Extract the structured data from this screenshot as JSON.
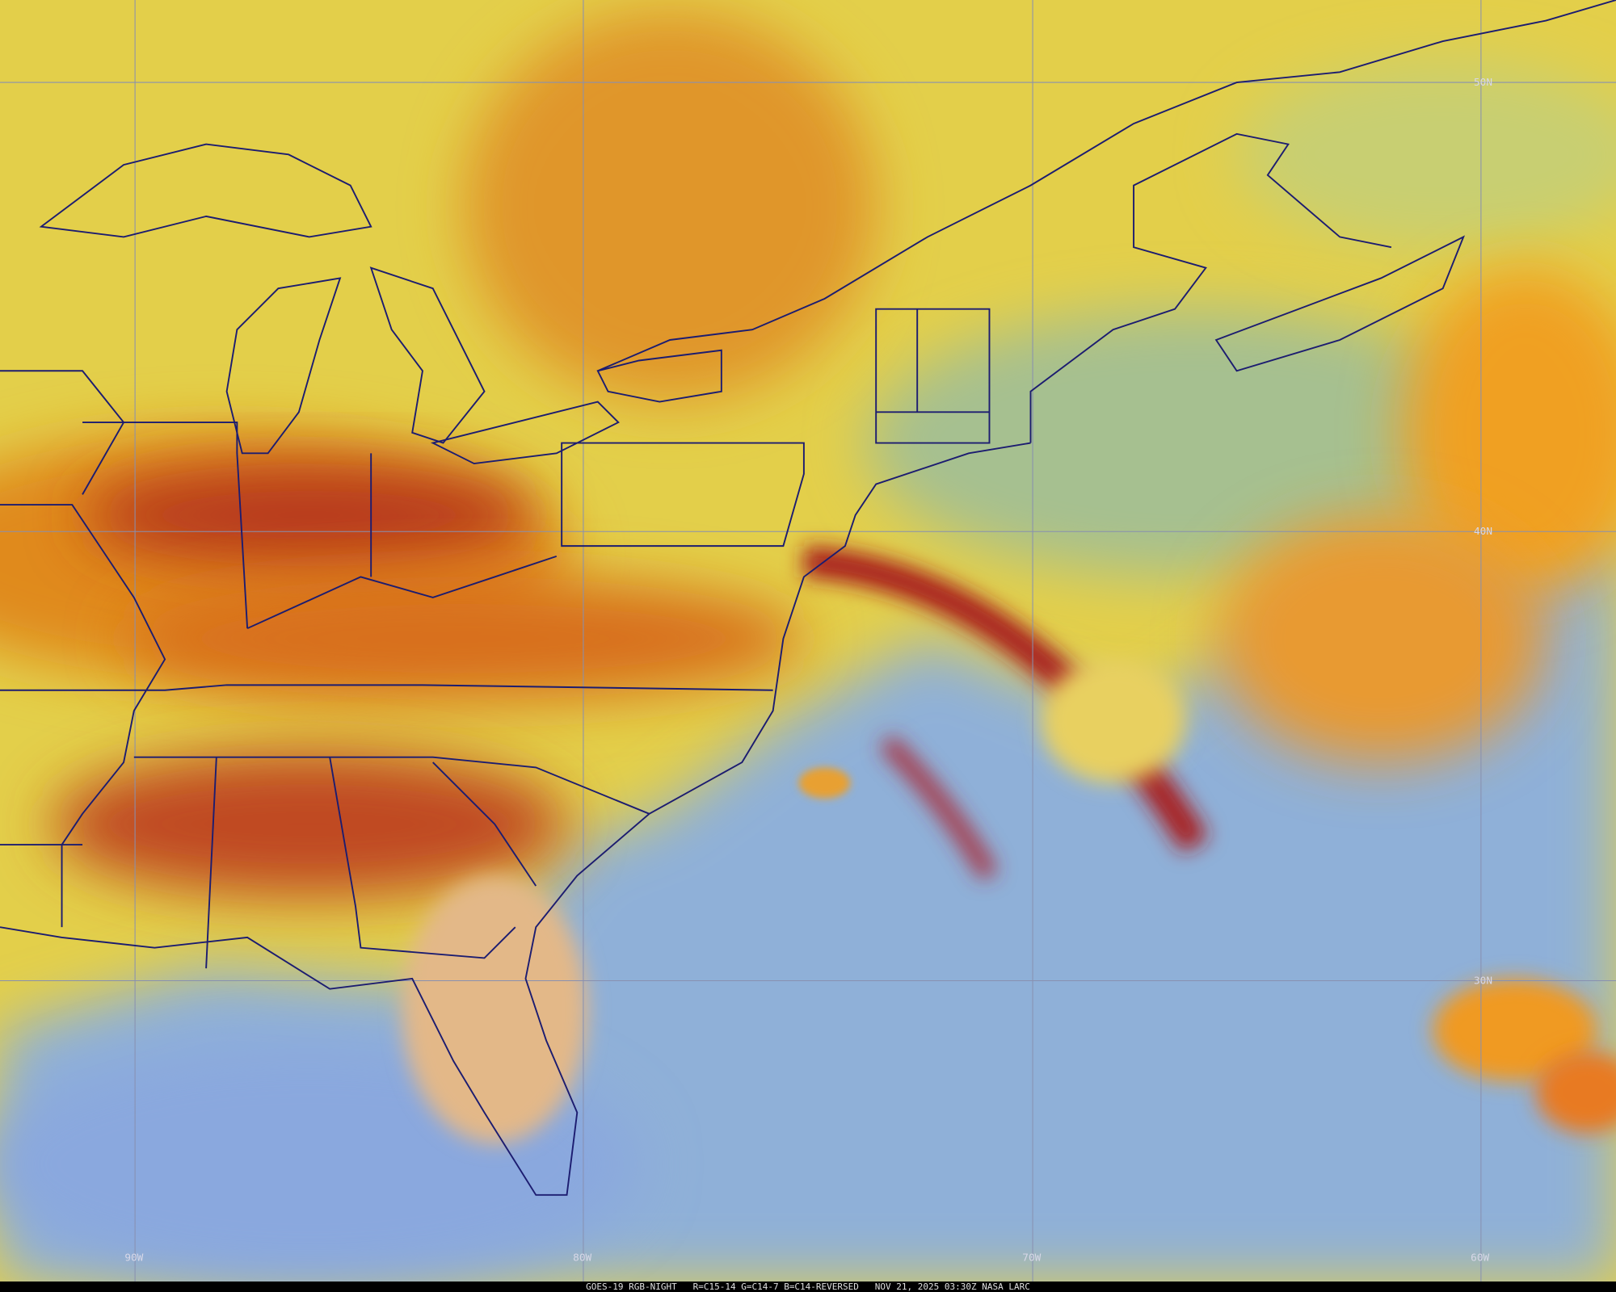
{
  "map": {
    "lat_labels": [
      "50N",
      "40N",
      "30N"
    ],
    "lon_labels": [
      "90W",
      "80W",
      "70W",
      "60W"
    ]
  },
  "footer": "GOES-19 RGB-NIGHT   R=C15-14 G=C14-7 B=C14-REVERSED   NOV 21, 2025 03:30Z NASA LARC"
}
